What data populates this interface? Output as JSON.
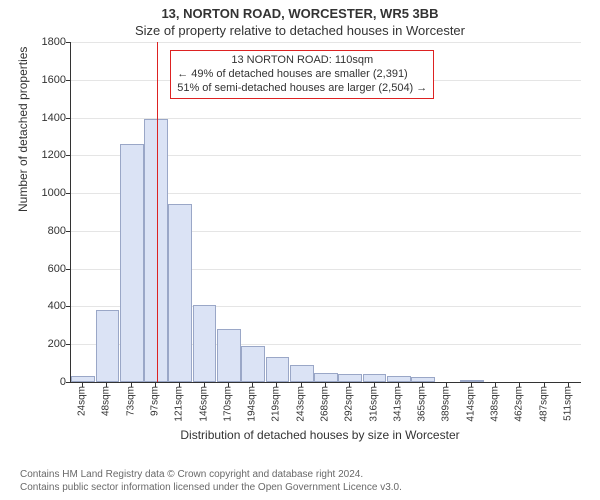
{
  "title_line1": "13, NORTON ROAD, WORCESTER, WR5 3BB",
  "title_line2": "Size of property relative to detached houses in Worcester",
  "ylabel": "Number of detached properties",
  "xlabel": "Distribution of detached houses by size in Worcester",
  "chart": {
    "type": "histogram",
    "background_color": "#ffffff",
    "grid_color": "#e5e5e5",
    "axis_color": "#333333",
    "bar_fill": "#dbe3f5",
    "bar_border": "#9aa7c7",
    "ylim": [
      0,
      1800
    ],
    "ytick_step": 200,
    "yticks": [
      0,
      200,
      400,
      600,
      800,
      1000,
      1200,
      1400,
      1600,
      1800
    ],
    "categories": [
      "24sqm",
      "48sqm",
      "73sqm",
      "97sqm",
      "121sqm",
      "146sqm",
      "170sqm",
      "194sqm",
      "219sqm",
      "243sqm",
      "268sqm",
      "292sqm",
      "316sqm",
      "341sqm",
      "365sqm",
      "389sqm",
      "414sqm",
      "438sqm",
      "462sqm",
      "487sqm",
      "511sqm"
    ],
    "values": [
      30,
      380,
      1260,
      1390,
      940,
      410,
      280,
      190,
      130,
      90,
      50,
      40,
      40,
      30,
      25,
      0,
      10,
      0,
      0,
      0,
      0
    ],
    "bar_width_ratio": 0.98,
    "marker": {
      "color": "#d22",
      "position_index": 3.55,
      "lines": [
        "13 NORTON ROAD: 110sqm",
        "← 49% of detached houses are smaller (2,391)",
        "51% of semi-detached houses are larger (2,504) →"
      ]
    }
  },
  "footer_line1": "Contains HM Land Registry data © Crown copyright and database right 2024.",
  "footer_line2": "Contains public sector information licensed under the Open Government Licence v3.0."
}
